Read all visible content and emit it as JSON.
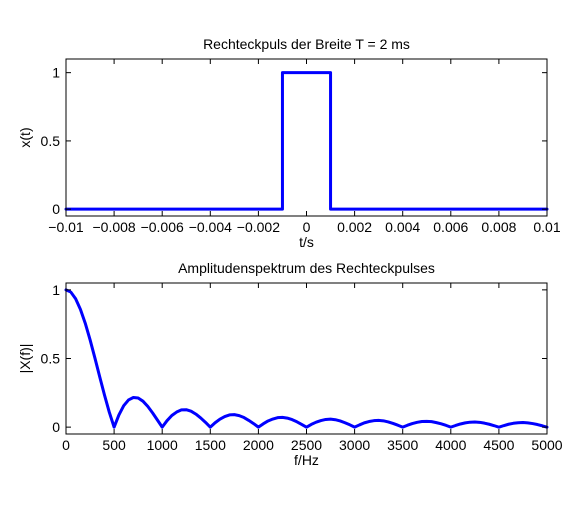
{
  "chart_data": [
    {
      "type": "line",
      "title": "Rechteckpuls der Breite T = 2 ms",
      "xlabel": "t/s",
      "ylabel": "x(t)",
      "xlim": [
        -0.01,
        0.01
      ],
      "ylim": [
        -0.05,
        1.1
      ],
      "xticks": [
        -0.01,
        -0.008,
        -0.006,
        -0.004,
        -0.002,
        0,
        0.002,
        0.004,
        0.006,
        0.008,
        0.01
      ],
      "xtick_labels": [
        "−0.01",
        "−0.008",
        "−0.006",
        "−0.004",
        "−0.002",
        "0",
        "0.002",
        "0.004",
        "0.006",
        "0.008",
        "0.01"
      ],
      "yticks": [
        0,
        0.5,
        1
      ],
      "ytick_labels": [
        "0",
        "0.5",
        "1"
      ],
      "grid": false,
      "series": [
        {
          "color": "#0000ff",
          "x": [
            -0.01,
            -0.001,
            -0.001,
            0.001,
            0.001,
            0.01
          ],
          "y": [
            0,
            0,
            1,
            1,
            0,
            0
          ]
        }
      ]
    },
    {
      "type": "line",
      "title": "Amplitudenspektrum des Rechteckpulses",
      "xlabel": "f/Hz",
      "ylabel": "|X(f)|",
      "xlim": [
        0,
        5000
      ],
      "ylim": [
        -0.05,
        1.05
      ],
      "xticks": [
        0,
        500,
        1000,
        1500,
        2000,
        2500,
        3000,
        3500,
        4000,
        4500,
        5000
      ],
      "xtick_labels": [
        "0",
        "500",
        "1000",
        "1500",
        "2000",
        "2500",
        "3000",
        "3500",
        "4000",
        "4500",
        "5000"
      ],
      "yticks": [
        0,
        0.5,
        1
      ],
      "ytick_labels": [
        "0",
        "0.5",
        "1"
      ],
      "grid": false,
      "series": [
        {
          "color": "#0000ff",
          "x": [
            0,
            50,
            100,
            150,
            200,
            250,
            300,
            350,
            400,
            450,
            500,
            550,
            600,
            650,
            700,
            750,
            800,
            850,
            900,
            950,
            1000,
            1050,
            1100,
            1150,
            1200,
            1250,
            1300,
            1350,
            1400,
            1450,
            1500,
            1550,
            1600,
            1650,
            1700,
            1750,
            1800,
            1850,
            1900,
            1950,
            2000,
            2050,
            2100,
            2150,
            2200,
            2250,
            2300,
            2350,
            2400,
            2450,
            2500,
            2550,
            2600,
            2650,
            2700,
            2750,
            2800,
            2850,
            2900,
            2950,
            3000,
            3050,
            3100,
            3150,
            3200,
            3250,
            3300,
            3350,
            3400,
            3450,
            3500,
            3550,
            3600,
            3650,
            3700,
            3750,
            3800,
            3850,
            3900,
            3950,
            4000,
            4050,
            4100,
            4150,
            4200,
            4250,
            4300,
            4350,
            4400,
            4450,
            4500,
            4550,
            4600,
            4650,
            4700,
            4750,
            4800,
            4850,
            4900,
            4950,
            5000
          ],
          "y": [
            1.0,
            0.984,
            0.935,
            0.858,
            0.757,
            0.637,
            0.505,
            0.368,
            0.234,
            0.109,
            0.0,
            0.089,
            0.156,
            0.198,
            0.216,
            0.212,
            0.189,
            0.151,
            0.104,
            0.052,
            0.0,
            0.047,
            0.085,
            0.11,
            0.126,
            0.127,
            0.116,
            0.095,
            0.067,
            0.035,
            0.0,
            0.032,
            0.058,
            0.077,
            0.089,
            0.091,
            0.084,
            0.07,
            0.049,
            0.026,
            0.0,
            0.024,
            0.045,
            0.059,
            0.069,
            0.071,
            0.066,
            0.055,
            0.039,
            0.02,
            0.0,
            0.02,
            0.036,
            0.048,
            0.056,
            0.058,
            0.054,
            0.045,
            0.032,
            0.017,
            0.0,
            0.016,
            0.031,
            0.041,
            0.047,
            0.049,
            0.046,
            0.038,
            0.027,
            0.014,
            0.0,
            0.014,
            0.026,
            0.035,
            0.041,
            0.042,
            0.04,
            0.033,
            0.024,
            0.013,
            0.0,
            0.012,
            0.023,
            0.031,
            0.036,
            0.037,
            0.035,
            0.029,
            0.021,
            0.011,
            0.0,
            0.011,
            0.021,
            0.028,
            0.032,
            0.034,
            0.031,
            0.026,
            0.019,
            0.01,
            0.0
          ]
        }
      ]
    }
  ]
}
